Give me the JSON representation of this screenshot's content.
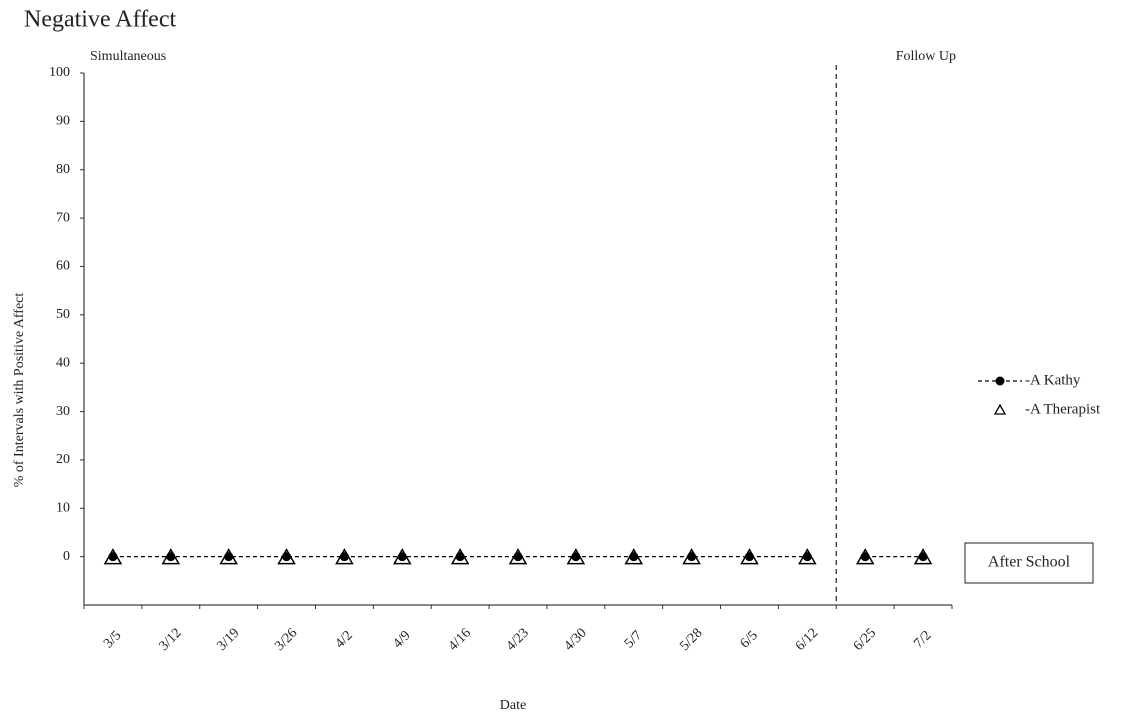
{
  "chart_data": {
    "type": "line",
    "title": "Negative Affect",
    "x_label": "Date",
    "y_label": "% of Intervals with Positive Affect",
    "categories": [
      "3/5",
      "3/12",
      "3/19",
      "3/26",
      "4/2",
      "4/9",
      "4/16",
      "4/23",
      "4/30",
      "5/7",
      "5/28",
      "6/5",
      "6/12",
      "6/25",
      "7/2"
    ],
    "series": [
      {
        "name": "-A Kathy",
        "color": "#000000",
        "marker": "circle",
        "line_style": "dashed",
        "values": [
          0,
          0,
          0,
          0,
          0,
          0,
          0,
          0,
          0,
          0,
          0,
          0,
          0,
          0,
          0
        ]
      },
      {
        "name": "-A Therapist",
        "color": "#000000",
        "marker": "triangle",
        "line_style": "none",
        "values": [
          0,
          0,
          0,
          0,
          0,
          0,
          0,
          0,
          0,
          0,
          0,
          0,
          0,
          0,
          0
        ]
      }
    ],
    "phases": [
      {
        "label": "Simultaneous",
        "start": "3/5",
        "end": "6/12"
      },
      {
        "label": "Follow Up",
        "start": "6/25",
        "end": "7/2"
      }
    ],
    "condition_label": "After School",
    "ylim": [
      -10,
      100
    ],
    "yticks": [
      0,
      10,
      20,
      30,
      40,
      50,
      60,
      70,
      80,
      90,
      100
    ],
    "legend": "right"
  }
}
